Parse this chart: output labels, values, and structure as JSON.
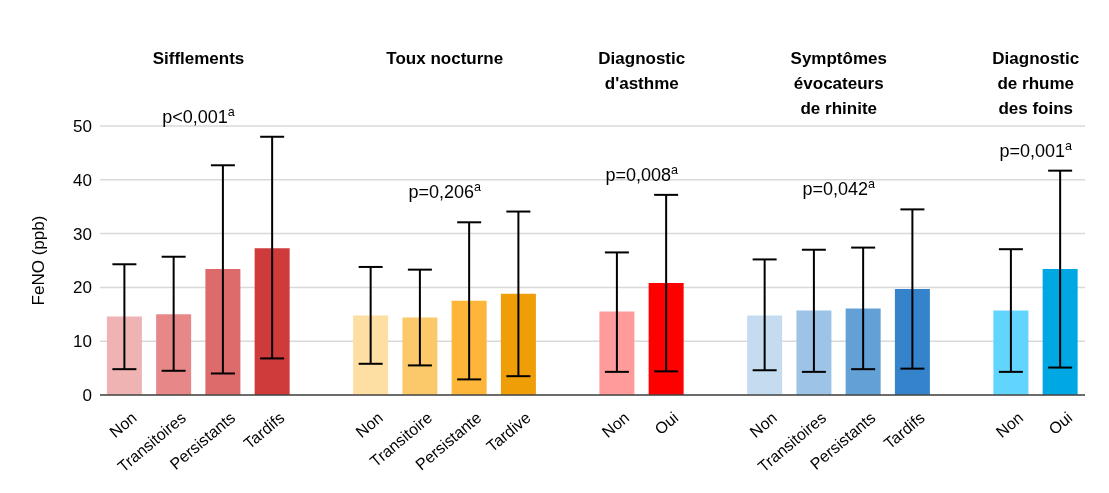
{
  "chart_data": {
    "type": "bar",
    "ylabel": "FeNO (ppb)",
    "categories": [
      "Non",
      "Transitoires",
      "Persistants",
      "Tardifs",
      null,
      "Non",
      "Transitoire",
      "Persistante",
      "Tardive",
      null,
      "Non",
      "Oui",
      null,
      "Non",
      "Transitoires",
      "Persistants",
      "Tardifs",
      null,
      "Non",
      "Oui"
    ],
    "values": [
      14.6,
      15.0,
      23.4,
      27.3,
      null,
      14.8,
      14.4,
      17.5,
      18.8,
      null,
      15.5,
      20.8,
      null,
      14.8,
      15.7,
      16.1,
      19.7,
      null,
      15.7,
      23.4
    ],
    "errors": [
      [
        4.8,
        24.3
      ],
      [
        4.5,
        25.7
      ],
      [
        4.0,
        42.7
      ],
      [
        6.8,
        48.0
      ],
      null,
      [
        5.8,
        23.8
      ],
      [
        5.5,
        23.3
      ],
      [
        2.9,
        32.1
      ],
      [
        3.5,
        34.1
      ],
      null,
      [
        4.3,
        26.5
      ],
      [
        4.4,
        37.2
      ],
      null,
      [
        4.6,
        25.2
      ],
      [
        4.3,
        27.0
      ],
      [
        4.8,
        27.4
      ],
      [
        4.9,
        34.5
      ],
      null,
      [
        4.3,
        27.1
      ],
      [
        5.1,
        41.7
      ]
    ],
    "colors": [
      "#efb3b3",
      "#e88787",
      "#dd6b6b",
      "#cf3a3a",
      null,
      "#fddea3",
      "#fcc96a",
      "#fdb53a",
      "#f09e07",
      null,
      "#ff9b9b",
      "#ff0000",
      null,
      "#c5dbf0",
      "#9dc3e6",
      "#62a0d6",
      "#3584cb",
      null,
      "#62d5ff",
      "#00a8e3"
    ],
    "ylim": [
      0,
      50
    ],
    "yticks": [
      0,
      10,
      20,
      30,
      40,
      50
    ],
    "grid": "y",
    "annotations": [
      "Sifflements",
      "Toux nocturne",
      "Diagnostic\nd'asthme",
      "Symptômes\névocateurs\nde rhinite",
      "Diagnostic\nde rhume\ndes foins",
      "p<0,001$^{a}$",
      "p=0,206$^{a}$",
      "p=0,008$^{a}$",
      "p=0,042$^{a}$",
      "p=0,001$^{a}$"
    ]
  }
}
